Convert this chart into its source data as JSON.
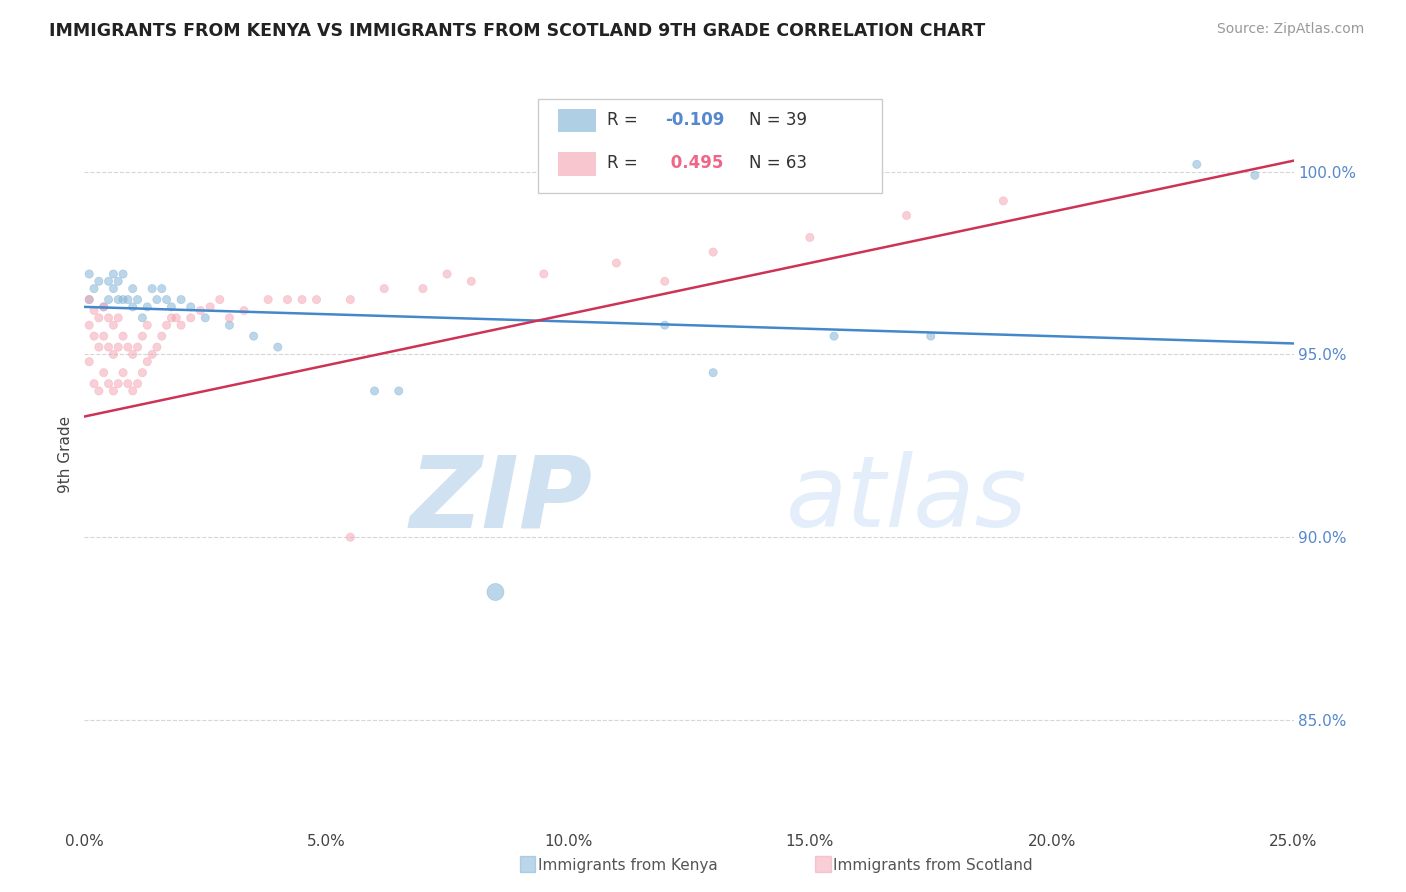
{
  "title": "IMMIGRANTS FROM KENYA VS IMMIGRANTS FROM SCOTLAND 9TH GRADE CORRELATION CHART",
  "source": "Source: ZipAtlas.com",
  "ylabel": "9th Grade",
  "legend_labels": [
    "Immigrants from Kenya",
    "Immigrants from Scotland"
  ],
  "r_kenya": -0.109,
  "n_kenya": 39,
  "r_scotland": 0.495,
  "n_scotland": 63,
  "color_kenya": "#7BAFD4",
  "color_scotland": "#F4A0B0",
  "line_color_kenya": "#4488CC",
  "line_color_scotland": "#CC3355",
  "xlim": [
    0.0,
    0.25
  ],
  "ylim": [
    0.82,
    1.025
  ],
  "yticks": [
    0.85,
    0.9,
    0.95,
    1.0
  ],
  "ytick_labels": [
    "85.0%",
    "90.0%",
    "95.0%",
    "100.0%"
  ],
  "xticks": [
    0.0,
    0.05,
    0.1,
    0.15,
    0.2,
    0.25
  ],
  "xtick_labels": [
    "0.0%",
    "5.0%",
    "10.0%",
    "15.0%",
    "20.0%",
    "25.0%"
  ],
  "watermark_zip": "ZIP",
  "watermark_atlas": "atlas",
  "kenya_x": [
    0.001,
    0.001,
    0.002,
    0.003,
    0.004,
    0.005,
    0.005,
    0.006,
    0.006,
    0.007,
    0.007,
    0.008,
    0.008,
    0.009,
    0.01,
    0.01,
    0.011,
    0.012,
    0.013,
    0.014,
    0.015,
    0.016,
    0.017,
    0.018,
    0.02,
    0.022,
    0.025,
    0.03,
    0.035,
    0.04,
    0.065,
    0.12,
    0.155,
    0.23,
    0.242,
    0.085,
    0.06,
    0.175,
    0.13
  ],
  "kenya_y": [
    0.965,
    0.972,
    0.968,
    0.97,
    0.963,
    0.97,
    0.965,
    0.968,
    0.972,
    0.965,
    0.97,
    0.965,
    0.972,
    0.965,
    0.963,
    0.968,
    0.965,
    0.96,
    0.963,
    0.968,
    0.965,
    0.968,
    0.965,
    0.963,
    0.965,
    0.963,
    0.96,
    0.958,
    0.955,
    0.952,
    0.94,
    0.958,
    0.955,
    1.002,
    0.999,
    0.885,
    0.94,
    0.955,
    0.945
  ],
  "kenya_sizes": [
    35,
    35,
    35,
    35,
    35,
    35,
    35,
    35,
    35,
    35,
    35,
    35,
    35,
    35,
    35,
    35,
    35,
    35,
    35,
    35,
    35,
    35,
    35,
    35,
    35,
    35,
    35,
    35,
    35,
    35,
    35,
    35,
    35,
    35,
    35,
    150,
    35,
    35,
    35
  ],
  "scotland_x": [
    0.001,
    0.001,
    0.001,
    0.002,
    0.002,
    0.002,
    0.003,
    0.003,
    0.003,
    0.004,
    0.004,
    0.004,
    0.005,
    0.005,
    0.005,
    0.006,
    0.006,
    0.006,
    0.007,
    0.007,
    0.007,
    0.008,
    0.008,
    0.009,
    0.009,
    0.01,
    0.01,
    0.011,
    0.011,
    0.012,
    0.012,
    0.013,
    0.013,
    0.014,
    0.015,
    0.016,
    0.017,
    0.018,
    0.019,
    0.02,
    0.022,
    0.024,
    0.026,
    0.028,
    0.03,
    0.033,
    0.038,
    0.042,
    0.048,
    0.055,
    0.062,
    0.07,
    0.08,
    0.095,
    0.11,
    0.13,
    0.15,
    0.17,
    0.19,
    0.12,
    0.055,
    0.075,
    0.045
  ],
  "scotland_y": [
    0.948,
    0.958,
    0.965,
    0.942,
    0.955,
    0.962,
    0.94,
    0.952,
    0.96,
    0.945,
    0.955,
    0.963,
    0.942,
    0.952,
    0.96,
    0.94,
    0.95,
    0.958,
    0.942,
    0.952,
    0.96,
    0.945,
    0.955,
    0.942,
    0.952,
    0.94,
    0.95,
    0.942,
    0.952,
    0.945,
    0.955,
    0.948,
    0.958,
    0.95,
    0.952,
    0.955,
    0.958,
    0.96,
    0.96,
    0.958,
    0.96,
    0.962,
    0.963,
    0.965,
    0.96,
    0.962,
    0.965,
    0.965,
    0.965,
    0.965,
    0.968,
    0.968,
    0.97,
    0.972,
    0.975,
    0.978,
    0.982,
    0.988,
    0.992,
    0.97,
    0.9,
    0.972,
    0.965
  ],
  "scotland_sizes": [
    35,
    35,
    35,
    35,
    35,
    35,
    35,
    35,
    35,
    35,
    35,
    35,
    35,
    35,
    35,
    35,
    35,
    35,
    35,
    35,
    35,
    35,
    35,
    35,
    35,
    35,
    35,
    35,
    35,
    35,
    35,
    35,
    35,
    35,
    35,
    35,
    35,
    35,
    35,
    35,
    35,
    35,
    35,
    35,
    35,
    35,
    35,
    35,
    35,
    35,
    35,
    35,
    35,
    35,
    35,
    35,
    35,
    35,
    35,
    35,
    35,
    35,
    35
  ]
}
